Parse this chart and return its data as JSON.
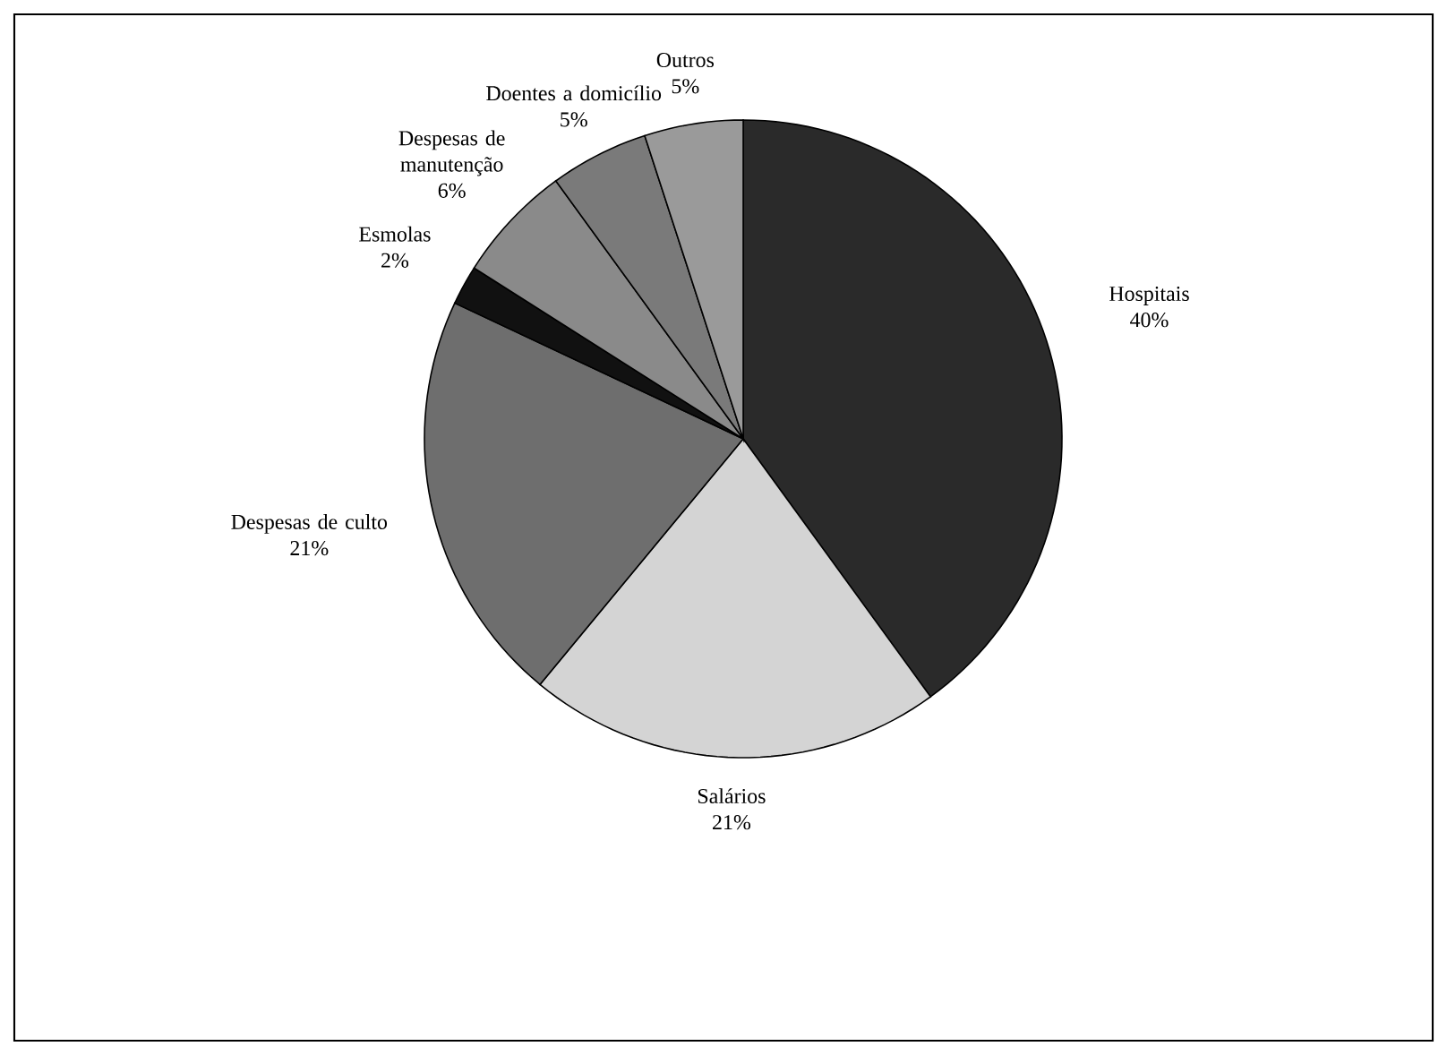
{
  "chart_data": {
    "type": "pie",
    "categories": [
      "Hospitais",
      "Salários",
      "Despesas de culto",
      "Esmolas",
      "Despesas de manutenção",
      "Doentes a domicílio",
      "Outros"
    ],
    "values": [
      40,
      21,
      21,
      2,
      6,
      5,
      5
    ],
    "value_labels": [
      "40%",
      "21%",
      "21%",
      "2%",
      "6%",
      "5%",
      "5%"
    ],
    "colors": [
      "#2a2a2a",
      "#d4d4d4",
      "#6e6e6e",
      "#111111",
      "#8a8a8a",
      "#7a7a7a",
      "#9a9a9a"
    ]
  }
}
